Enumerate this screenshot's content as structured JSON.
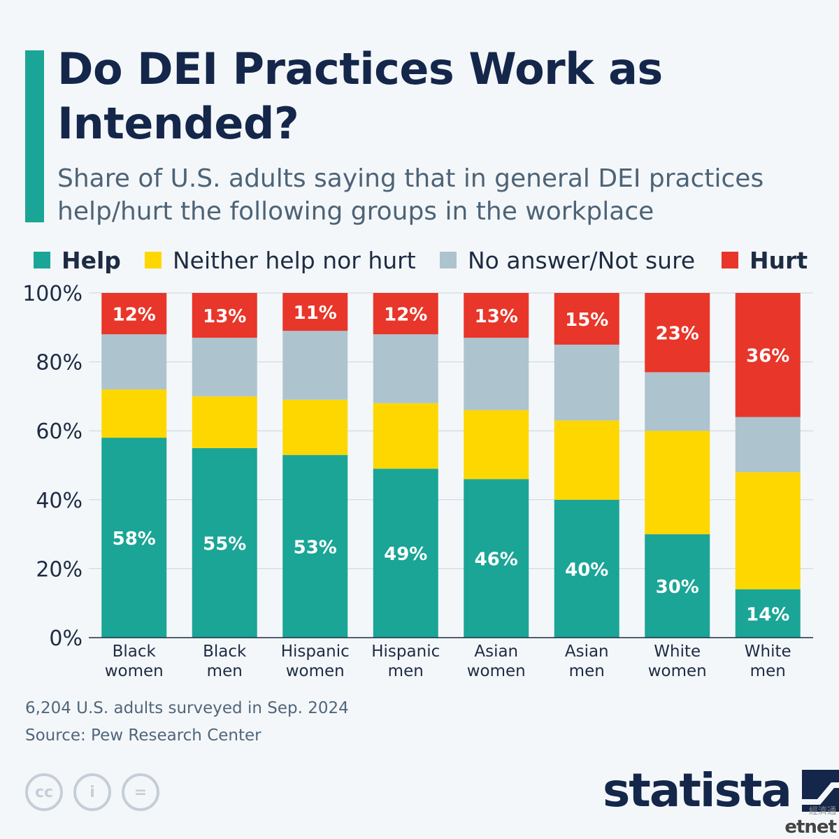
{
  "title": "Do DEI Practices Work as Intended?",
  "subtitle": "Share of U.S. adults saying that in general DEI practices help/hurt the following groups in the workplace",
  "legend": [
    {
      "label": "Help",
      "color": "#1aa596",
      "bold": true
    },
    {
      "label": "Neither help nor hurt",
      "color": "#fed700",
      "bold": false
    },
    {
      "label": "No answer/Not sure",
      "color": "#adc4cf",
      "bold": false
    },
    {
      "label": "Hurt",
      "color": "#e8362a",
      "bold": true
    }
  ],
  "chart_data": {
    "type": "bar",
    "stacked": true,
    "categories": [
      [
        "Black",
        "women"
      ],
      [
        "Black",
        "men"
      ],
      [
        "Hispanic",
        "women"
      ],
      [
        "Hispanic",
        "men"
      ],
      [
        "Asian",
        "women"
      ],
      [
        "Asian",
        "men"
      ],
      [
        "White",
        "women"
      ],
      [
        "White",
        "men"
      ]
    ],
    "series": [
      {
        "name": "Help",
        "color": "#1aa596",
        "values": [
          58,
          55,
          53,
          49,
          46,
          40,
          30,
          14
        ],
        "labeled": true
      },
      {
        "name": "Neither help nor hurt",
        "color": "#fed700",
        "values": [
          14,
          15,
          16,
          19,
          20,
          23,
          30,
          34
        ],
        "labeled": false
      },
      {
        "name": "No answer/Not sure",
        "color": "#adc4cf",
        "values": [
          16,
          17,
          20,
          20,
          21,
          22,
          17,
          16
        ],
        "labeled": false
      },
      {
        "name": "Hurt",
        "color": "#e8362a",
        "values": [
          12,
          13,
          11,
          12,
          13,
          15,
          23,
          36
        ],
        "labeled": true
      }
    ],
    "ylim": [
      0,
      100
    ],
    "yticks": [
      "0%",
      "20%",
      "40%",
      "60%",
      "80%",
      "100%"
    ],
    "grid": true,
    "legend_position": "top"
  },
  "note": "6,204 U.S. adults surveyed in Sep. 2024",
  "source": "Source: Pew Research Center",
  "license_icons": [
    {
      "name": "creative-commons-icon",
      "glyph": "cc"
    },
    {
      "name": "attribution-icon",
      "glyph": "i"
    },
    {
      "name": "no-derivatives-icon",
      "glyph": "="
    }
  ],
  "brand": "statista",
  "watermark": {
    "small": "經濟通",
    "big": "etnet"
  }
}
